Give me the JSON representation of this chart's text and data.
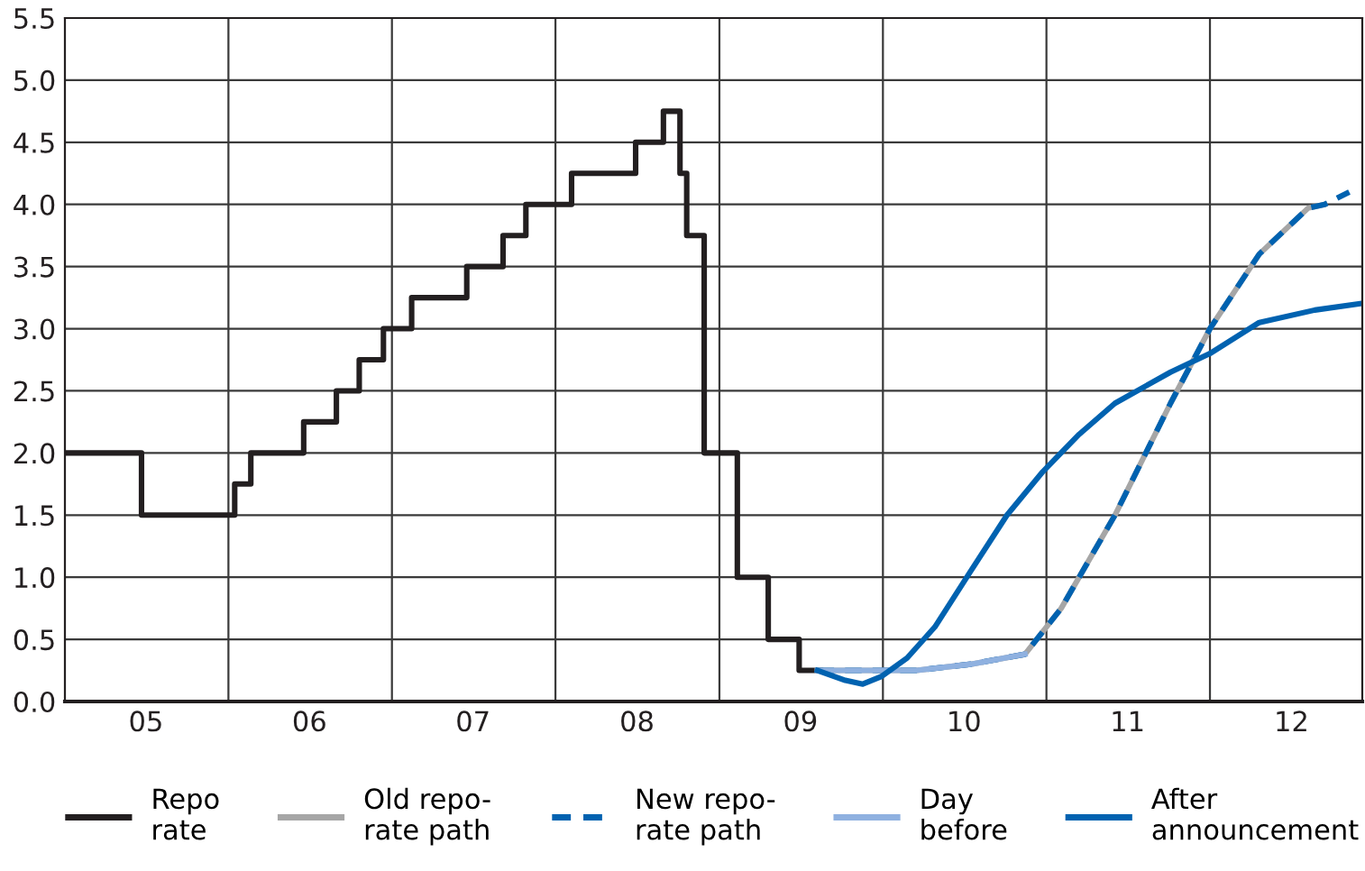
{
  "chart_data": {
    "type": "line",
    "xlim": [
      "2005-01-01",
      "2012-12-06"
    ],
    "ylim": [
      0,
      5.5
    ],
    "xticks": [
      {
        "value": "2005-07-01",
        "label": "05"
      },
      {
        "value": "2006-01-01",
        "label": null
      },
      {
        "value": "2006-07-01",
        "label": "06"
      },
      {
        "value": "2007-01-01",
        "label": null
      },
      {
        "value": "2007-07-01",
        "label": "07"
      },
      {
        "value": "2008-01-01",
        "label": null
      },
      {
        "value": "2008-07-01",
        "label": "08"
      },
      {
        "value": "2009-01-01",
        "label": null
      },
      {
        "value": "2009-07-01",
        "label": "09"
      },
      {
        "value": "2010-01-01",
        "label": null
      },
      {
        "value": "2010-07-01",
        "label": "10"
      },
      {
        "value": "2011-01-01",
        "label": null
      },
      {
        "value": "2011-07-01",
        "label": "11"
      },
      {
        "value": "2012-01-01",
        "label": null
      },
      {
        "value": "2012-07-01",
        "label": "12"
      }
    ],
    "yticks": [
      {
        "value": 0,
        "label": "0.0"
      },
      {
        "value": 0.5,
        "label": "0.5"
      },
      {
        "value": 1,
        "label": "1.0"
      },
      {
        "value": 1.5,
        "label": "1.5"
      },
      {
        "value": 2,
        "label": "2.0"
      },
      {
        "value": 2.5,
        "label": "2.5"
      },
      {
        "value": 3,
        "label": "3.0"
      },
      {
        "value": 3.5,
        "label": "3.5"
      },
      {
        "value": 4,
        "label": "4.0"
      },
      {
        "value": 4.5,
        "label": "4.5"
      },
      {
        "value": 5,
        "label": "5.0"
      },
      {
        "value": 5.5,
        "label": "5.5"
      }
    ],
    "grid": true,
    "legend": "bottom",
    "marker": "none",
    "series": [
      {
        "name": "Repo\nrate",
        "type": "step",
        "color": "#231f20",
        "line_style": "solid",
        "x": [
          "2005-01-01",
          "2005-06-21",
          "2006-01-15",
          "2006-02-20",
          "2006-06-18",
          "2006-08-30",
          "2006-10-20",
          "2006-12-13",
          "2007-02-14",
          "2007-06-17",
          "2007-09-06",
          "2007-10-27",
          "2008-02-06",
          "2008-06-28",
          "2008-08-29",
          "2008-10-05",
          "2008-10-20",
          "2008-11-28",
          "2009-02-10",
          "2009-04-20",
          "2009-06-28",
          "2009-08-15"
        ],
        "values": [
          2,
          1.5,
          1.75,
          2,
          2.25,
          2.5,
          2.75,
          3,
          3.25,
          3.5,
          3.75,
          4,
          4.25,
          4.5,
          4.75,
          4.25,
          3.75,
          2,
          1,
          0.5,
          0.25,
          0.25
        ]
      },
      {
        "name": "Old repo-\nrate path",
        "color": "#a6a6a6",
        "line_style": "solid",
        "x": [
          "2009-08-08",
          "2009-11-24",
          "2010-03-17",
          "2010-07-16",
          "2010-11-14",
          "2011-02-03",
          "2011-06-03",
          "2011-10-05",
          "2012-01-01",
          "2012-04-20",
          "2012-08-07",
          "2012-09-13"
        ],
        "values": [
          0.25,
          0.25,
          0.25,
          0.3,
          0.38,
          0.75,
          1.5,
          2.4,
          3.0,
          3.6,
          3.97,
          4.0
        ]
      },
      {
        "name": "New repo-\nrate path",
        "color": "#0062b0",
        "line_style": "dashed",
        "x": [
          "2009-08-08",
          "2009-11-24",
          "2010-03-17",
          "2010-07-16",
          "2010-11-14",
          "2011-02-03",
          "2011-06-03",
          "2011-10-05",
          "2012-01-01",
          "2012-04-20",
          "2012-08-07",
          "2012-09-13",
          "2012-11-07"
        ],
        "values": [
          0.25,
          0.25,
          0.25,
          0.3,
          0.38,
          0.75,
          1.5,
          2.4,
          3.0,
          3.6,
          3.97,
          4.0,
          4.1
        ]
      },
      {
        "name": "Day\nbefore",
        "color": "#8fb1e0",
        "line_style": "solid",
        "x": [
          "2009-08-08",
          "2009-11-24",
          "2010-03-17",
          "2010-07-16",
          "2010-11-14"
        ],
        "values": [
          0.25,
          0.25,
          0.25,
          0.3,
          0.38
        ]
      },
      {
        "name": "After\nannouncement",
        "color": "#0062b0",
        "line_style": "solid",
        "x": [
          "2009-08-08",
          "2009-10-09",
          "2009-11-17",
          "2009-12-28",
          "2010-02-24",
          "2010-04-27",
          "2010-07-16",
          "2010-10-05",
          "2010-12-24",
          "2011-03-15",
          "2011-06-03",
          "2011-10-05",
          "2012-01-01",
          "2012-04-20",
          "2012-08-22",
          "2012-11-29"
        ],
        "values": [
          0.25,
          0.17,
          0.14,
          0.2,
          0.35,
          0.6,
          1.05,
          1.5,
          1.85,
          2.15,
          2.4,
          2.65,
          2.8,
          3.05,
          3.15,
          3.2
        ]
      }
    ]
  }
}
